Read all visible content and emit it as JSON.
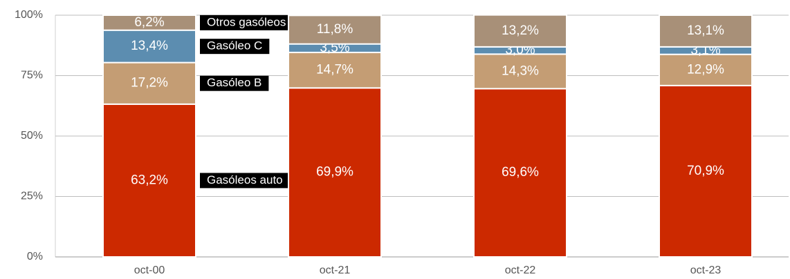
{
  "chart_data": {
    "type": "stacked_bar",
    "categories": [
      "oct-00",
      "oct-21",
      "oct-22",
      "oct-23"
    ],
    "series": [
      {
        "name": "Gasóleos auto",
        "color": "#cc2900",
        "values": [
          63.2,
          69.9,
          69.6,
          70.9
        ],
        "value_labels": [
          "63,2%",
          "69,9%",
          "69,6%",
          "70,9%"
        ]
      },
      {
        "name": "Gasóleo B",
        "color": "#c49d74",
        "values": [
          17.2,
          14.7,
          14.3,
          12.9
        ],
        "value_labels": [
          "17,2%",
          "14,7%",
          "14,3%",
          "12,9%"
        ]
      },
      {
        "name": "Gasóleo C",
        "color": "#5c8db0",
        "values": [
          13.4,
          3.5,
          3.0,
          3.1
        ],
        "value_labels": [
          "13,4%",
          "3,5%",
          "3,0%",
          "3,1%"
        ]
      },
      {
        "name": "Otros gasóleos",
        "color": "#a89078",
        "values": [
          6.2,
          11.8,
          13.2,
          13.1
        ],
        "value_labels": [
          "6,2%",
          "11,8%",
          "13,2%",
          "13,1%"
        ]
      }
    ],
    "ylim": [
      0,
      100
    ],
    "yticks": [
      {
        "value": 0,
        "label": "0%"
      },
      {
        "value": 25,
        "label": "25%"
      },
      {
        "value": 50,
        "label": "50%"
      },
      {
        "value": 75,
        "label": "75%"
      },
      {
        "value": 100,
        "label": "100%"
      }
    ],
    "grid": true
  }
}
